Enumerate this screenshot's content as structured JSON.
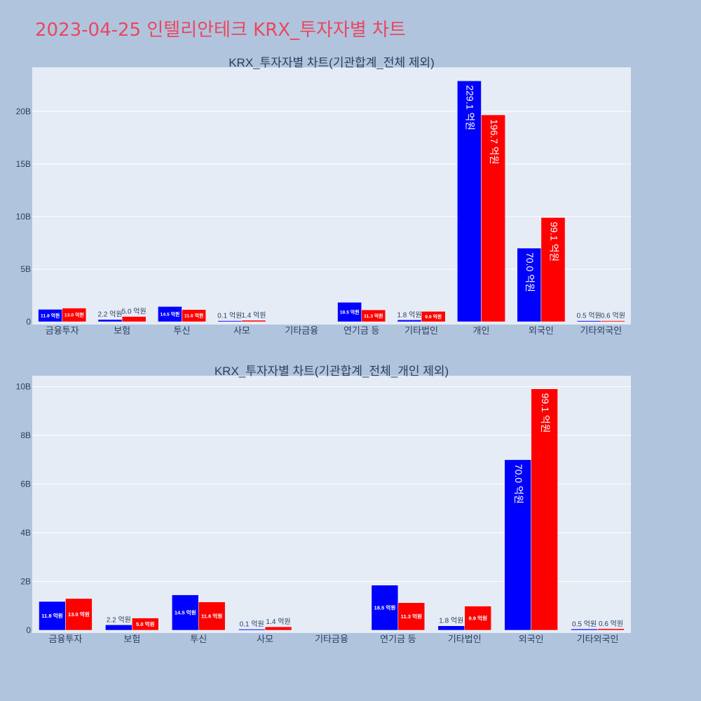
{
  "page": {
    "title": "2023-04-25 인텔리안테크 KRX_투자자별 차트"
  },
  "colors": {
    "background": "#b0c4de",
    "plot_background": "#e5ecf6",
    "grid": "#ffffff",
    "title": "#e8475f",
    "text": "#2a3f5f",
    "buy": "#0000ff",
    "sell": "#ff0000"
  },
  "chart_data": [
    {
      "type": "bar",
      "title": "KRX_투자자별 차트(기관합계_전체 제외)",
      "categories": [
        "금융투자",
        "보험",
        "투신",
        "사모",
        "기타금융",
        "연기금 등",
        "기타법인",
        "개인",
        "외국인",
        "기타외국인"
      ],
      "series": [
        {
          "values": [
            1.18,
            0.22,
            1.45,
            0.01,
            0,
            1.85,
            0.18,
            22.91,
            7.0,
            0.05
          ],
          "labels": [
            "11.8 억원",
            "2.2 억원",
            "14.5 억원",
            "0.1 억원",
            "",
            "18.5 억원",
            "1.8 억원",
            "229.1 억원",
            "70.0 억원",
            "0.5 억원"
          ]
        },
        {
          "values": [
            1.3,
            0.5,
            1.16,
            0.14,
            0,
            1.13,
            0.99,
            19.67,
            9.91,
            0.06
          ],
          "labels": [
            "13.0 억원",
            "5.0 억원",
            "11.6 억원",
            "1.4 억원",
            "",
            "11.3 억원",
            "9.9 억원",
            "196.7 억원",
            "99.1 억원",
            "0.6 억원"
          ]
        }
      ],
      "ylim": [
        0,
        24.2
      ],
      "yticks": [
        0,
        5,
        10,
        15,
        20
      ],
      "ytick_labels": [
        "0",
        "5B",
        "10B",
        "15B",
        "20B"
      ],
      "grid": true
    },
    {
      "type": "bar",
      "title": "KRX_투자자별 차트(기관합계_전체_개인 제외)",
      "categories": [
        "금융투자",
        "보험",
        "투신",
        "사모",
        "기타금융",
        "연기금 등",
        "기타법인",
        "외국인",
        "기타외국인"
      ],
      "series": [
        {
          "values": [
            1.18,
            0.22,
            1.45,
            0.01,
            0,
            1.85,
            0.18,
            7.0,
            0.05
          ],
          "labels": [
            "11.8 억원",
            "2.2 억원",
            "14.5 억원",
            "0.1 억원",
            "",
            "18.5 억원",
            "1.8 억원",
            "70.0 억원",
            "0.5 억원"
          ]
        },
        {
          "values": [
            1.3,
            0.5,
            1.16,
            0.14,
            0,
            1.13,
            0.99,
            9.91,
            0.06
          ],
          "labels": [
            "13.0 억원",
            "5.0 억원",
            "11.6 억원",
            "1.4 억원",
            "",
            "11.3 억원",
            "9.9 억원",
            "99.1 억원",
            "0.6 억원"
          ]
        }
      ],
      "ylim": [
        0,
        10.45
      ],
      "yticks": [
        0,
        2,
        4,
        6,
        8,
        10
      ],
      "ytick_labels": [
        "0",
        "2B",
        "4B",
        "6B",
        "8B",
        "10B"
      ],
      "grid": true
    }
  ]
}
